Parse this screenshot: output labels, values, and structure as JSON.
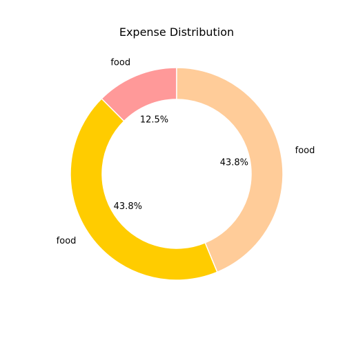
{
  "chart_data": {
    "type": "pie",
    "title": "Expense Distribution",
    "donut": true,
    "start_angle_deg": 90,
    "direction": "counterclockwise",
    "slices": [
      {
        "label": "food",
        "value": 12.5,
        "percent_label": "12.5%",
        "color": "#ff9999"
      },
      {
        "label": "food",
        "value": 43.8,
        "percent_label": "43.8%",
        "color": "#ffcc00"
      },
      {
        "label": "food",
        "value": 43.8,
        "percent_label": "43.8%",
        "color": "#ffcc99"
      }
    ],
    "edge_color": "#ffffff"
  }
}
